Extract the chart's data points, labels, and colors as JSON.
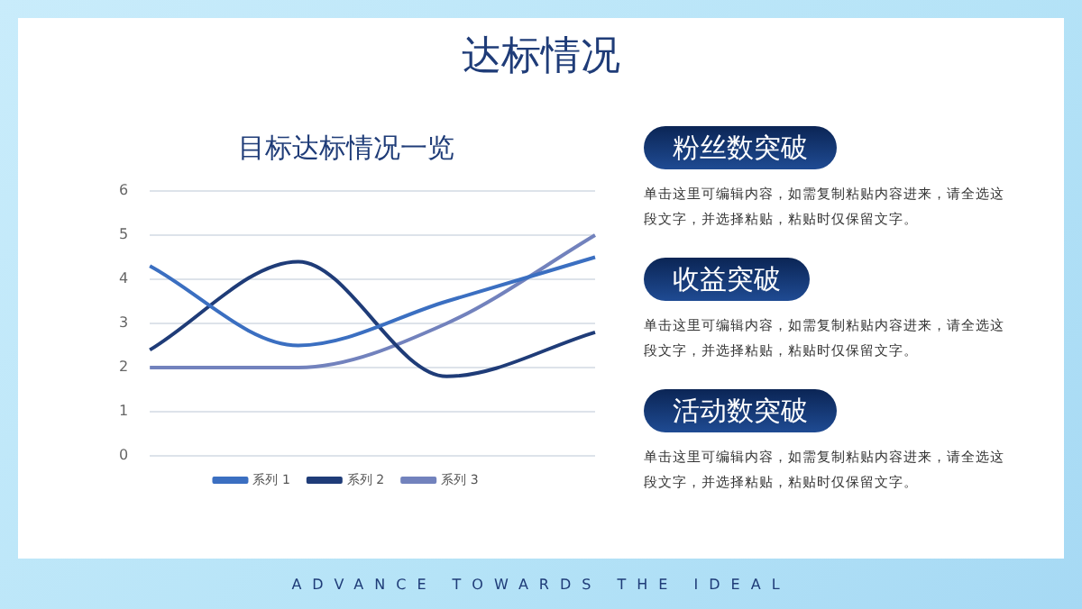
{
  "chart_data": {
    "type": "line",
    "title": "目标达标情况一览",
    "categories": [
      null,
      null,
      null,
      null
    ],
    "series": [
      {
        "name": "系列 1",
        "color": "#3b6fc1",
        "values": [
          4.3,
          2.5,
          3.5,
          4.5
        ]
      },
      {
        "name": "系列 2",
        "color": "#1f3c78",
        "values": [
          2.4,
          4.4,
          1.8,
          2.8
        ]
      },
      {
        "name": "系列 3",
        "color": "#7282bd",
        "values": [
          2,
          2,
          3,
          5
        ]
      }
    ],
    "ylim": [
      0,
      6
    ],
    "yticks": [
      0,
      1,
      2,
      3,
      4,
      5,
      6
    ],
    "grid": "y",
    "legend": "bottom",
    "marker": "none",
    "line_style": "solid",
    "annotations": [
      "达标情况",
      "粉丝数突破",
      "单击这里可编辑内容，如需复制粘贴内容进来，请全选这段文字，并选择粘贴，粘贴时仅保留文字。",
      "收益突破",
      "单击这里可编辑内容，如需复制粘贴内容进来，请全选这段文字，并选择粘贴，粘贴时仅保留文字。",
      "活动数突破",
      "单击这里可编辑内容，如需复制粘贴内容进来，请全选这段文字，并选择粘贴，粘贴时仅保留文字。",
      "ADVANCE TOWARDS THE IDEAL"
    ]
  }
}
